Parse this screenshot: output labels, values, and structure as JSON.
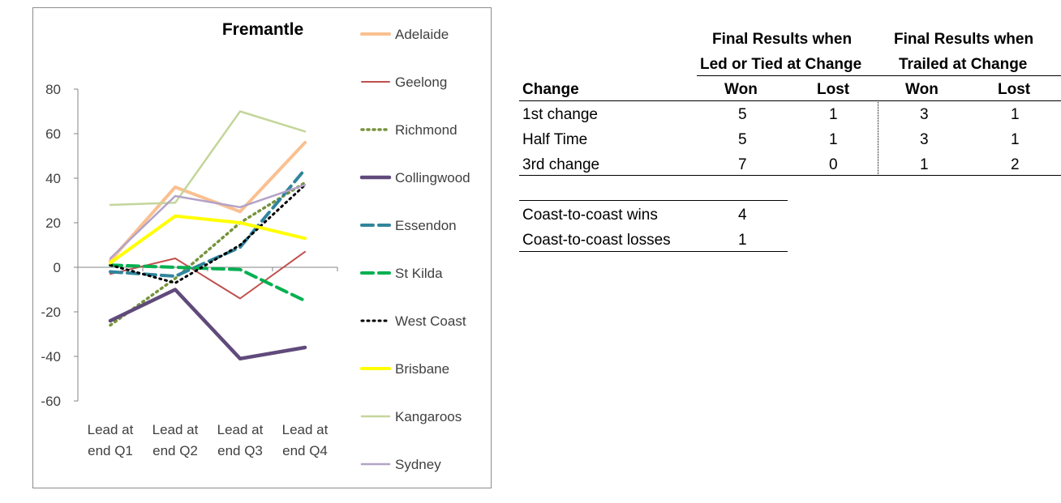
{
  "chart_data": {
    "type": "line",
    "title": "Fremantle",
    "categories": [
      "Lead at end Q1",
      "Lead at end Q2",
      "Lead at end Q3",
      "Lead at end Q4"
    ],
    "category_lines": [
      [
        "Lead at",
        "end Q1"
      ],
      [
        "Lead at",
        "end Q2"
      ],
      [
        "Lead at",
        "end Q3"
      ],
      [
        "Lead at",
        "end Q4"
      ]
    ],
    "ylim": [
      -60,
      80
    ],
    "yticks": [
      80,
      60,
      40,
      20,
      0,
      -20,
      -40,
      -60
    ],
    "ytick_labels": [
      "80",
      "60",
      "40",
      "20",
      "0",
      "-20",
      "-40",
      "-60"
    ],
    "legend_position": "right",
    "series": [
      {
        "name": "Adelaide",
        "values": [
          3,
          36,
          25,
          56
        ],
        "color": "#fac090",
        "width": 4,
        "dash": "solid"
      },
      {
        "name": "Geelong",
        "values": [
          -3,
          4,
          -14,
          7
        ],
        "color": "#c0504d",
        "width": 2,
        "dash": "solid"
      },
      {
        "name": "Richmond",
        "values": [
          -26,
          -5,
          20,
          38
        ],
        "color": "#77933c",
        "width": 3.5,
        "dash": "dot"
      },
      {
        "name": "Collingwood",
        "values": [
          -24,
          -10,
          -41,
          -36
        ],
        "color": "#604a7b",
        "width": 4.5,
        "dash": "solid"
      },
      {
        "name": "Essendon",
        "values": [
          -2,
          -4,
          9,
          44
        ],
        "color": "#31859c",
        "width": 4,
        "dash": "dash"
      },
      {
        "name": "St Kilda",
        "values": [
          1,
          0,
          -1,
          -15
        ],
        "color": "#00b050",
        "width": 4,
        "dash": "dash"
      },
      {
        "name": "West Coast",
        "values": [
          1,
          -7,
          10,
          37
        ],
        "color": "#000000",
        "width": 3,
        "dash": "dot"
      },
      {
        "name": "Brisbane",
        "values": [
          2,
          23,
          20,
          13
        ],
        "color": "#ffff00",
        "width": 4,
        "dash": "solid"
      },
      {
        "name": "Kangaroos",
        "values": [
          28,
          29,
          70,
          61
        ],
        "color": "#c3d69b",
        "width": 2.5,
        "dash": "solid"
      },
      {
        "name": "Sydney",
        "values": [
          4,
          32,
          27,
          37
        ],
        "color": "#b3a2c7",
        "width": 2.5,
        "dash": "solid"
      }
    ]
  },
  "table": {
    "group1_line1": "Final Results when",
    "group1_line2": "Led or Tied at Change",
    "group2_line1": "Final Results when",
    "group2_line2": "Trailed at Change",
    "col_change": "Change",
    "col_won": "Won",
    "col_lost": "Lost",
    "rows": [
      {
        "label": "1st change",
        "led_won": "5",
        "led_lost": "1",
        "trailed_won": "3",
        "trailed_lost": "1"
      },
      {
        "label": "Half Time",
        "led_won": "5",
        "led_lost": "1",
        "trailed_won": "3",
        "trailed_lost": "1"
      },
      {
        "label": "3rd change",
        "led_won": "7",
        "led_lost": "0",
        "trailed_won": "1",
        "trailed_lost": "2"
      }
    ]
  },
  "coast": {
    "wins_label": "Coast-to-coast wins",
    "wins_value": "4",
    "losses_label": "Coast-to-coast losses",
    "losses_value": "1"
  }
}
